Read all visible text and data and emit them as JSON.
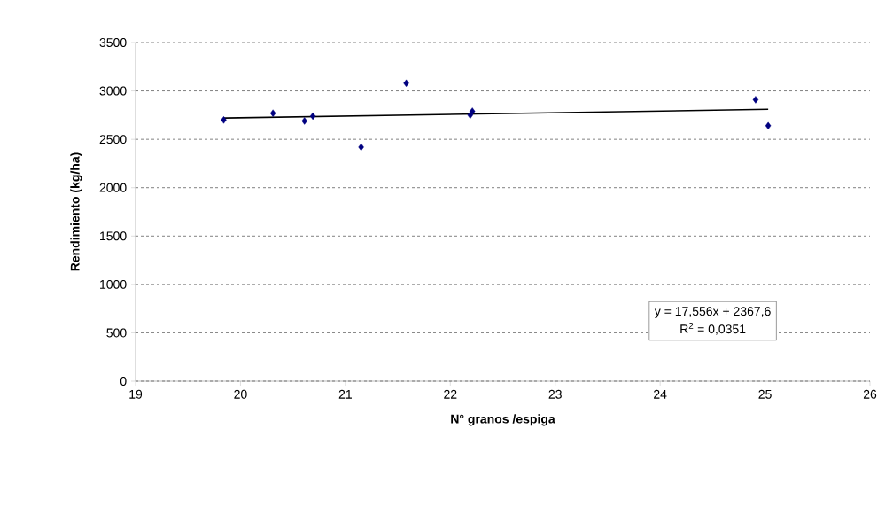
{
  "chart_data": {
    "type": "scatter",
    "xlabel": "N° granos /espiga",
    "ylabel": "Rendimiento (kg/ha)",
    "xlim": [
      19,
      26
    ],
    "xticks": [
      19,
      20,
      21,
      22,
      23,
      24,
      25,
      26
    ],
    "ylim": [
      0,
      3500
    ],
    "yticks": [
      0,
      500,
      1000,
      1500,
      2000,
      2500,
      3000,
      3500
    ],
    "grid": "y",
    "marker": "diamond",
    "series": [
      {
        "color": "#000080",
        "x": [
          19.84,
          20.31,
          20.61,
          20.69,
          21.15,
          21.58,
          22.19,
          22.21,
          24.91,
          25.03
        ],
        "values": [
          2700,
          2770,
          2690,
          2740,
          2420,
          3080,
          2750,
          2790,
          2910,
          2640
        ]
      },
      {
        "type": "line",
        "color": "#000000",
        "marker": "none",
        "x": [
          19.84,
          25.03
        ],
        "values": [
          2720,
          2810
        ]
      }
    ],
    "annotations": [
      "y = 17,556x + 2367,6",
      "R$^{2}$ = 0,0351"
    ]
  }
}
